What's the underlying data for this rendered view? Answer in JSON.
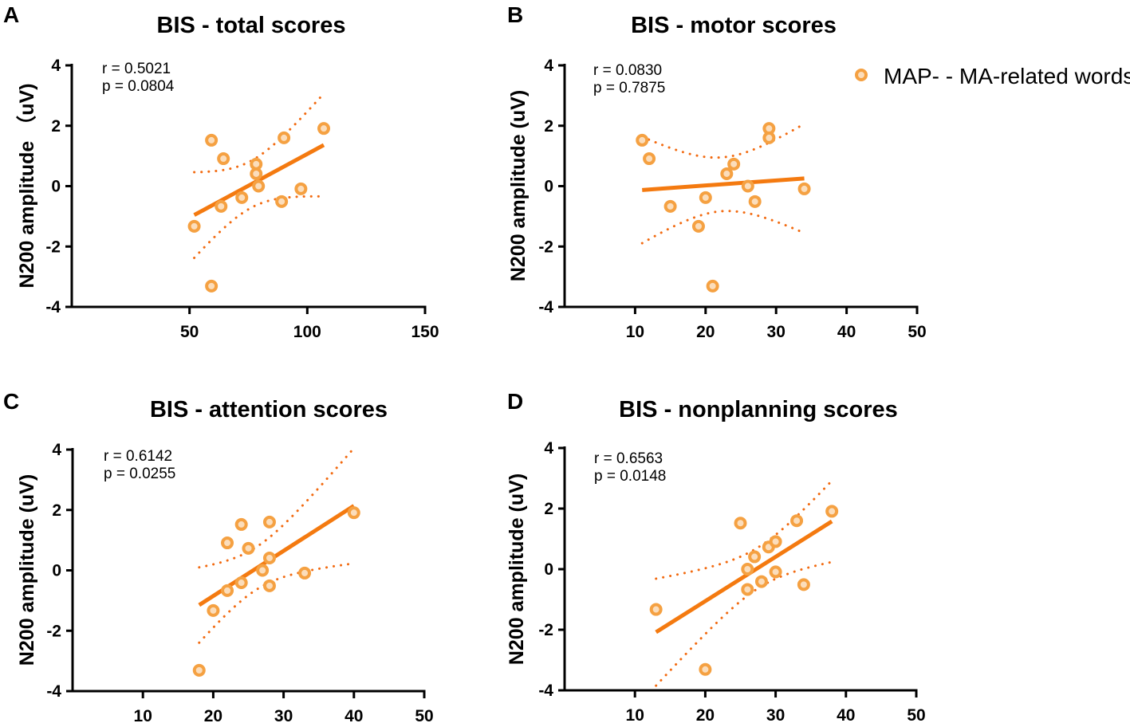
{
  "legend": {
    "label": "MAP- - MA-related words"
  },
  "colors": {
    "line": "#F47A10",
    "marker_stroke": "#F5A142",
    "marker_fill": "#FBDDBB",
    "ci": "#F26A10"
  },
  "chart_data": [
    {
      "type": "scatter",
      "panel": "A",
      "title": "BIS - total scores",
      "ylabel": "N200 amplitude （uV)",
      "xlabel": "",
      "xlim": [
        0,
        150
      ],
      "ylim": [
        -4,
        4
      ],
      "xticks": [
        50,
        100,
        150
      ],
      "yticks": [
        4,
        2,
        0,
        -2,
        -4
      ],
      "stats": {
        "r": "r = 0.5021",
        "p": "p = 0.0804"
      },
      "x": [
        52,
        59.3,
        64.4,
        63.4,
        72.2,
        78.3,
        78.3,
        79.3,
        89.1,
        90.1,
        97.3,
        107,
        59.3
      ],
      "y": [
        -1.33,
        1.52,
        0.91,
        -0.67,
        -0.38,
        0.73,
        0.41,
        0.0,
        -0.51,
        1.6,
        -0.09,
        1.91,
        -3.31
      ]
    },
    {
      "type": "scatter",
      "panel": "B",
      "title": "BIS - motor scores",
      "ylabel": "N200 amplitude (uV)",
      "xlabel": "",
      "xlim": [
        0,
        50
      ],
      "ylim": [
        -4,
        4
      ],
      "xticks": [
        10,
        20,
        30,
        40,
        50
      ],
      "yticks": [
        4,
        2,
        0,
        -2,
        -4
      ],
      "stats": {
        "r": "r = 0.0830",
        "p": "p = 0.7875"
      },
      "x": [
        11,
        12,
        15,
        19,
        20,
        21,
        23,
        24,
        26,
        27,
        29,
        29,
        34
      ],
      "y": [
        1.52,
        0.91,
        -0.67,
        -1.33,
        -0.38,
        -3.31,
        0.41,
        0.73,
        0.0,
        -0.51,
        1.91,
        1.6,
        -0.09
      ]
    },
    {
      "type": "scatter",
      "panel": "C",
      "title": "BIS - attention scores",
      "ylabel": "N200 amplitude (uV)",
      "xlabel": "",
      "xlim": [
        0,
        50
      ],
      "ylim": [
        -4,
        4
      ],
      "xticks": [
        10,
        20,
        30,
        40,
        50
      ],
      "yticks": [
        4,
        2,
        0,
        -2,
        -4
      ],
      "stats": {
        "r": "r = 0.6142",
        "p": "p = 0.0255"
      },
      "x": [
        18,
        20,
        22,
        22,
        24,
        24,
        25,
        27,
        28,
        28,
        28,
        33,
        40
      ],
      "y": [
        -3.31,
        -1.33,
        -0.67,
        0.91,
        -0.41,
        1.52,
        0.73,
        0.0,
        0.41,
        -0.51,
        1.6,
        -0.09,
        1.91
      ]
    },
    {
      "type": "scatter",
      "panel": "D",
      "title": "BIS - nonplanning scores",
      "ylabel": "N200 amplitude (uV)",
      "xlabel": "",
      "xlim": [
        0,
        50
      ],
      "ylim": [
        -4,
        4
      ],
      "xticks": [
        10,
        20,
        30,
        40,
        50
      ],
      "yticks": [
        4,
        2,
        0,
        -2,
        -4
      ],
      "stats": {
        "r": "r = 0.6563",
        "p": "p = 0.0148"
      },
      "x": [
        13,
        20,
        25,
        26,
        26,
        27,
        28,
        29,
        30,
        30,
        33,
        34,
        38
      ],
      "y": [
        -1.33,
        -3.31,
        1.52,
        0.0,
        -0.67,
        0.41,
        -0.41,
        0.73,
        0.91,
        -0.09,
        1.6,
        -0.51,
        1.91
      ]
    }
  ]
}
